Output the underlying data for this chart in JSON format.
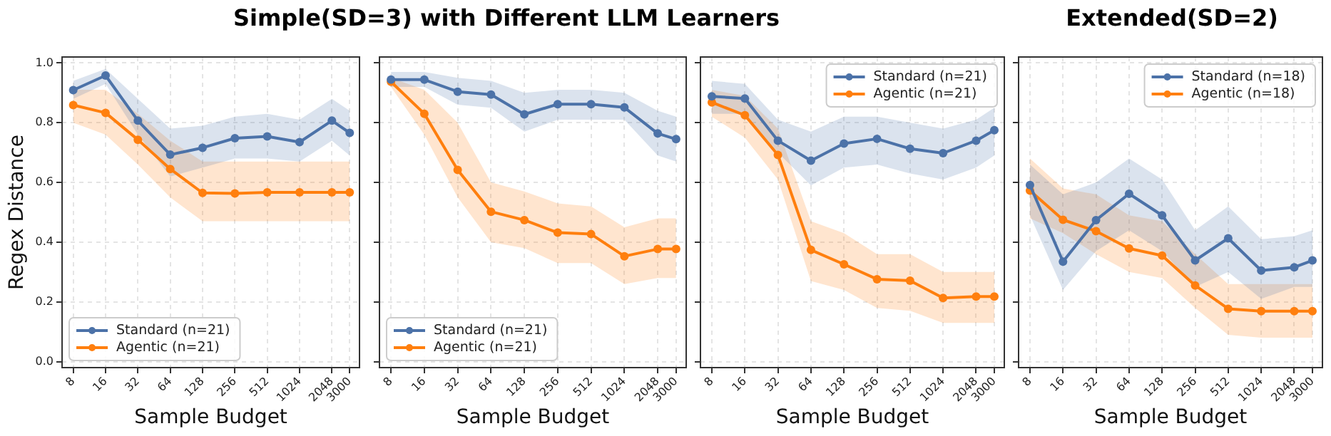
{
  "chart_data": [
    {
      "type": "line",
      "title": "Simple(SD=3) with Different LLM Learners",
      "xlabel": "Sample Budget",
      "ylabel": "Regex Distance",
      "log": "x",
      "x": [
        8,
        16,
        32,
        64,
        128,
        256,
        512,
        1024,
        2048,
        3000
      ],
      "xlim": [
        6.3,
        3700
      ],
      "xticks": [
        8,
        16,
        32,
        64,
        128,
        256,
        512,
        1024,
        2048,
        3000
      ],
      "ylim": [
        -0.02,
        1.02
      ],
      "yticks": [
        {
          "value": 0,
          "label": "0.0"
        },
        {
          "value": 0.2,
          "label": "0.2"
        },
        {
          "value": 0.4,
          "label": "0.4"
        },
        {
          "value": 0.6,
          "label": "0.6"
        },
        {
          "value": 0.8,
          "label": "0.8"
        },
        {
          "value": 1,
          "label": "1.0"
        }
      ],
      "grid": true,
      "legend": "bottom left",
      "marker": "circle",
      "series": [
        {
          "name": "Standard (n=21)",
          "color": "#4c72a8",
          "values": [
            0.909,
            0.958,
            0.807,
            0.693,
            0.716,
            0.748,
            0.754,
            0.735,
            0.807,
            0.766
          ],
          "lower": [
            0.88,
            0.93,
            0.76,
            0.62,
            0.65,
            0.68,
            0.68,
            0.67,
            0.74,
            0.69
          ],
          "upper": [
            0.94,
            0.98,
            0.88,
            0.78,
            0.79,
            0.82,
            0.83,
            0.81,
            0.88,
            0.84
          ]
        },
        {
          "name": "Agentic (n=21)",
          "color": "#ff7f0e",
          "values": [
            0.859,
            0.833,
            0.743,
            0.645,
            0.565,
            0.563,
            0.567,
            0.567,
            0.567,
            0.567
          ],
          "lower": [
            0.8,
            0.76,
            0.66,
            0.55,
            0.47,
            0.47,
            0.47,
            0.47,
            0.47,
            0.47
          ],
          "upper": [
            0.91,
            0.91,
            0.83,
            0.74,
            0.67,
            0.67,
            0.67,
            0.67,
            0.67,
            0.67
          ]
        }
      ]
    },
    {
      "type": "line",
      "xlabel": "Sample Budget",
      "log": "x",
      "tick_labels": "x",
      "x": [
        8,
        16,
        32,
        64,
        128,
        256,
        512,
        1024,
        2048,
        3000
      ],
      "xlim": [
        6.3,
        3700
      ],
      "xticks": [
        8,
        16,
        32,
        64,
        128,
        256,
        512,
        1024,
        2048,
        3000
      ],
      "ylim": [
        -0.02,
        1.02
      ],
      "yticks": [
        0,
        0.2,
        0.4,
        0.6,
        0.8,
        1
      ],
      "grid": true,
      "legend": "bottom left",
      "marker": "circle",
      "series": [
        {
          "name": "Standard (n=21)",
          "color": "#4c72a8",
          "values": [
            0.944,
            0.944,
            0.904,
            0.894,
            0.828,
            0.862,
            0.862,
            0.851,
            0.764,
            0.745
          ],
          "lower": [
            0.92,
            0.92,
            0.86,
            0.85,
            0.77,
            0.81,
            0.81,
            0.81,
            0.69,
            0.67
          ],
          "upper": [
            0.97,
            0.97,
            0.95,
            0.94,
            0.9,
            0.91,
            0.91,
            0.9,
            0.84,
            0.82
          ]
        },
        {
          "name": "Agentic (n=21)",
          "color": "#ff7f0e",
          "values": [
            0.937,
            0.83,
            0.642,
            0.502,
            0.474,
            0.432,
            0.427,
            0.353,
            0.377,
            0.377
          ],
          "lower": [
            0.92,
            0.76,
            0.55,
            0.4,
            0.38,
            0.33,
            0.33,
            0.26,
            0.28,
            0.28
          ],
          "upper": [
            0.95,
            0.91,
            0.8,
            0.6,
            0.57,
            0.53,
            0.52,
            0.45,
            0.48,
            0.48
          ]
        }
      ]
    },
    {
      "type": "line",
      "xlabel": "Sample Budget",
      "log": "x",
      "tick_labels": "x",
      "x": [
        8,
        16,
        32,
        64,
        128,
        256,
        512,
        1024,
        2048,
        3000
      ],
      "xlim": [
        6.3,
        3700
      ],
      "xticks": [
        8,
        16,
        32,
        64,
        128,
        256,
        512,
        1024,
        2048,
        3000
      ],
      "ylim": [
        -0.02,
        1.02
      ],
      "yticks": [
        0,
        0.2,
        0.4,
        0.6,
        0.8,
        1
      ],
      "grid": true,
      "legend": "top right",
      "marker": "circle",
      "series": [
        {
          "name": "Standard (n=21)",
          "color": "#4c72a8",
          "values": [
            0.888,
            0.881,
            0.74,
            0.673,
            0.73,
            0.746,
            0.713,
            0.698,
            0.74,
            0.775
          ],
          "lower": [
            0.83,
            0.83,
            0.7,
            0.59,
            0.65,
            0.66,
            0.63,
            0.61,
            0.65,
            0.69
          ],
          "upper": [
            0.94,
            0.93,
            0.81,
            0.77,
            0.82,
            0.82,
            0.8,
            0.78,
            0.81,
            0.85
          ]
        },
        {
          "name": "Agentic (n=21)",
          "color": "#ff7f0e",
          "values": [
            0.868,
            0.825,
            0.692,
            0.374,
            0.326,
            0.276,
            0.271,
            0.213,
            0.218,
            0.218
          ],
          "lower": [
            0.82,
            0.75,
            0.61,
            0.27,
            0.24,
            0.18,
            0.17,
            0.13,
            0.13,
            0.13
          ],
          "upper": [
            0.91,
            0.89,
            0.78,
            0.47,
            0.43,
            0.36,
            0.36,
            0.3,
            0.3,
            0.3
          ]
        }
      ]
    },
    {
      "type": "line",
      "title": "Extended(SD=2)",
      "xlabel": "Sample Budget",
      "log": "x",
      "tick_labels": "x",
      "x": [
        8,
        16,
        32,
        64,
        128,
        256,
        512,
        1024,
        2048,
        3000
      ],
      "xlim": [
        6.3,
        3700
      ],
      "xticks": [
        8,
        16,
        32,
        64,
        128,
        256,
        512,
        1024,
        2048,
        3000
      ],
      "ylim": [
        -0.02,
        1.02
      ],
      "yticks": [
        0,
        0.2,
        0.4,
        0.6,
        0.8,
        1
      ],
      "grid": true,
      "legend": "top right",
      "marker": "circle",
      "series": [
        {
          "name": "Standard (n=18)",
          "color": "#4c72a8",
          "values": [
            0.591,
            0.335,
            0.474,
            0.562,
            0.49,
            0.339,
            0.413,
            0.305,
            0.316,
            0.339
          ],
          "lower": [
            0.49,
            0.24,
            0.37,
            0.44,
            0.37,
            0.25,
            0.3,
            0.21,
            0.25,
            0.25
          ],
          "upper": [
            0.66,
            0.56,
            0.6,
            0.68,
            0.61,
            0.44,
            0.52,
            0.41,
            0.42,
            0.44
          ]
        },
        {
          "name": "Agentic (n=18)",
          "color": "#ff7f0e",
          "values": [
            0.573,
            0.475,
            0.437,
            0.379,
            0.355,
            0.255,
            0.177,
            0.169,
            0.169,
            0.169
          ],
          "lower": [
            0.48,
            0.43,
            0.36,
            0.3,
            0.28,
            0.18,
            0.09,
            0.08,
            0.08,
            0.08
          ],
          "upper": [
            0.68,
            0.58,
            0.56,
            0.49,
            0.47,
            0.36,
            0.26,
            0.26,
            0.26,
            0.26
          ]
        }
      ]
    }
  ]
}
